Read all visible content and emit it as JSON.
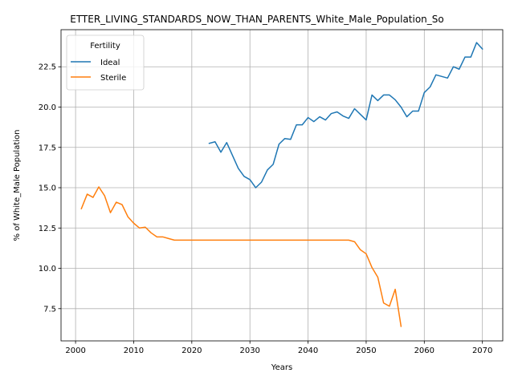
{
  "chart_data": {
    "type": "line",
    "title": "ETTER_LIVING_STANDARDS_NOW_THAN_PARENTS_White_Male_Population_So",
    "xlabel": "Years",
    "ylabel": "% of White_Male Population",
    "xlim": [
      1997.5,
      2073.5
    ],
    "ylim": [
      5.5,
      24.8
    ],
    "xticks": [
      2000,
      2010,
      2020,
      2030,
      2040,
      2050,
      2060,
      2070
    ],
    "yticks": [
      7.5,
      10.0,
      12.5,
      15.0,
      17.5,
      20.0,
      22.5
    ],
    "xtick_labels": [
      "2000",
      "2010",
      "2020",
      "2030",
      "2040",
      "2050",
      "2060",
      "2070"
    ],
    "ytick_labels": [
      "7.5",
      "10.0",
      "12.5",
      "15.0",
      "17.5",
      "20.0",
      "22.5"
    ],
    "grid": true,
    "legend": {
      "title": "Fertility",
      "position": "top-left"
    },
    "series": [
      {
        "name": "Ideal",
        "color": "#1f77b4",
        "x": [
          2023,
          2024,
          2025,
          2026,
          2027,
          2028,
          2029,
          2030,
          2031,
          2032,
          2033,
          2034,
          2035,
          2036,
          2037,
          2038,
          2039,
          2040,
          2041,
          2042,
          2043,
          2044,
          2045,
          2046,
          2047,
          2048,
          2049,
          2050,
          2051,
          2052,
          2053,
          2054,
          2055,
          2056,
          2057,
          2058,
          2059,
          2060,
          2061,
          2062,
          2063,
          2064,
          2065,
          2066,
          2067,
          2068,
          2069,
          2070
        ],
        "values": [
          17.75,
          17.85,
          17.2,
          17.8,
          17.0,
          16.2,
          15.7,
          15.5,
          15.0,
          15.35,
          16.1,
          16.45,
          17.7,
          18.05,
          18.0,
          18.9,
          18.9,
          19.35,
          19.1,
          19.4,
          19.2,
          19.6,
          19.7,
          19.45,
          19.3,
          19.9,
          19.55,
          19.2,
          20.75,
          20.4,
          20.75,
          20.75,
          20.45,
          20.0,
          19.4,
          19.75,
          19.75,
          20.9,
          21.25,
          22.0,
          21.9,
          21.8,
          22.5,
          22.35,
          23.1,
          23.1,
          24.0,
          23.6
        ]
      },
      {
        "name": "Sterile",
        "color": "#ff7f0e",
        "x": [
          2001,
          2002,
          2003,
          2004,
          2005,
          2006,
          2007,
          2008,
          2009,
          2010,
          2011,
          2012,
          2013,
          2014,
          2015,
          2016,
          2017,
          2018,
          2019,
          2020,
          2021,
          2022,
          2023,
          2024,
          2025,
          2026,
          2027,
          2028,
          2029,
          2030,
          2031,
          2032,
          2033,
          2034,
          2035,
          2036,
          2037,
          2038,
          2039,
          2040,
          2041,
          2042,
          2043,
          2044,
          2045,
          2046,
          2047,
          2048,
          2049,
          2050,
          2051,
          2052,
          2053,
          2054,
          2055,
          2056
        ],
        "values": [
          13.7,
          14.6,
          14.4,
          15.05,
          14.5,
          13.45,
          14.1,
          13.95,
          13.2,
          12.8,
          12.5,
          12.55,
          12.2,
          11.95,
          11.95,
          11.85,
          11.75,
          11.75,
          11.75,
          11.75,
          11.75,
          11.75,
          11.75,
          11.75,
          11.75,
          11.75,
          11.75,
          11.75,
          11.75,
          11.75,
          11.75,
          11.75,
          11.75,
          11.75,
          11.75,
          11.75,
          11.75,
          11.75,
          11.75,
          11.75,
          11.75,
          11.75,
          11.75,
          11.75,
          11.75,
          11.75,
          11.75,
          11.65,
          11.15,
          10.9,
          10.05,
          9.45,
          7.85,
          7.65,
          8.7,
          6.4
        ]
      }
    ]
  }
}
